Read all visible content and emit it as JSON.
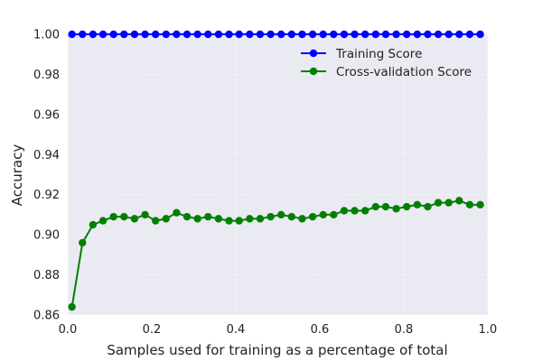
{
  "chart_data": {
    "type": "line",
    "title": "",
    "xlabel": "Samples used for training as a percentage of total",
    "ylabel": "Accuracy",
    "xlim": [
      0.0,
      1.0
    ],
    "ylim": [
      0.86,
      1.0
    ],
    "x_ticks": [
      0.0,
      0.2,
      0.4,
      0.6,
      0.8,
      1.0
    ],
    "x_tick_labels": [
      "0.0",
      "0.2",
      "0.4",
      "0.6",
      "0.8",
      "1.0"
    ],
    "y_ticks": [
      0.86,
      0.88,
      0.9,
      0.92,
      0.94,
      0.96,
      0.98,
      1.0
    ],
    "y_tick_labels": [
      "0.86",
      "0.88",
      "0.90",
      "0.92",
      "0.94",
      "0.96",
      "0.98",
      "1.00"
    ],
    "grid": true,
    "legend_position": "upper-right",
    "background": "#eaeaf2",
    "x": [
      0.01,
      0.035,
      0.06,
      0.084,
      0.109,
      0.134,
      0.159,
      0.184,
      0.209,
      0.234,
      0.259,
      0.284,
      0.309,
      0.334,
      0.359,
      0.384,
      0.408,
      0.433,
      0.458,
      0.483,
      0.508,
      0.533,
      0.558,
      0.583,
      0.608,
      0.633,
      0.658,
      0.683,
      0.708,
      0.733,
      0.757,
      0.782,
      0.807,
      0.832,
      0.857,
      0.882,
      0.907,
      0.932,
      0.957,
      0.982
    ],
    "series": [
      {
        "name": "Training Score",
        "color": "#0000ff",
        "values": [
          1.0,
          1.0,
          1.0,
          1.0,
          1.0,
          1.0,
          1.0,
          1.0,
          1.0,
          1.0,
          1.0,
          1.0,
          1.0,
          1.0,
          1.0,
          1.0,
          1.0,
          1.0,
          1.0,
          1.0,
          1.0,
          1.0,
          1.0,
          1.0,
          1.0,
          1.0,
          1.0,
          1.0,
          1.0,
          1.0,
          1.0,
          1.0,
          1.0,
          1.0,
          1.0,
          1.0,
          1.0,
          1.0,
          1.0,
          1.0
        ]
      },
      {
        "name": "Cross-validation Score",
        "color": "#008000",
        "values": [
          0.864,
          0.896,
          0.905,
          0.907,
          0.909,
          0.909,
          0.908,
          0.91,
          0.907,
          0.908,
          0.911,
          0.909,
          0.908,
          0.909,
          0.908,
          0.907,
          0.907,
          0.908,
          0.908,
          0.909,
          0.91,
          0.909,
          0.908,
          0.909,
          0.91,
          0.91,
          0.912,
          0.912,
          0.912,
          0.914,
          0.914,
          0.913,
          0.914,
          0.915,
          0.914,
          0.916,
          0.916,
          0.917,
          0.915,
          0.915
        ]
      }
    ]
  }
}
